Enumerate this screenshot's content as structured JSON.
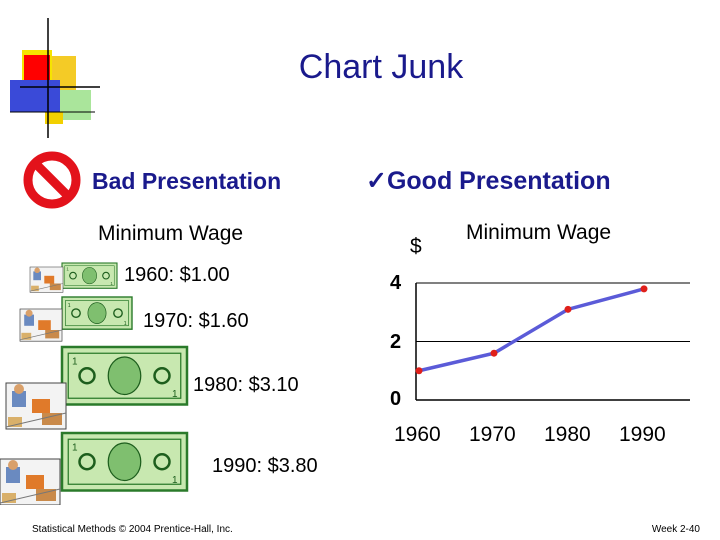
{
  "title": "Chart Junk",
  "bad": {
    "heading": "Bad Presentation",
    "icon": "prohibited-icon",
    "subtitle": "Minimum Wage",
    "entries": [
      {
        "text": "1960: $1.00"
      },
      {
        "text": "1970: $1.60"
      },
      {
        "text": "1980: $3.10"
      },
      {
        "text": "1990: $3.80"
      }
    ]
  },
  "good": {
    "check": "✓",
    "heading": "Good Presentation"
  },
  "chart_data": {
    "type": "line",
    "title": "Minimum Wage",
    "ylabel": "$",
    "xlabel": "",
    "categories": [
      "1960",
      "1970",
      "1980",
      "1990"
    ],
    "values": [
      1.0,
      1.6,
      3.1,
      3.8
    ],
    "yticks": [
      "0",
      "2",
      "4"
    ],
    "ylim": [
      0,
      4
    ],
    "grid": true,
    "line_color": "#5b5bd8",
    "marker_color": "#e0201a"
  },
  "footer": {
    "left": "Statistical Methods © 2004 Prentice-Hall, Inc.",
    "right": "Week 2-40"
  }
}
